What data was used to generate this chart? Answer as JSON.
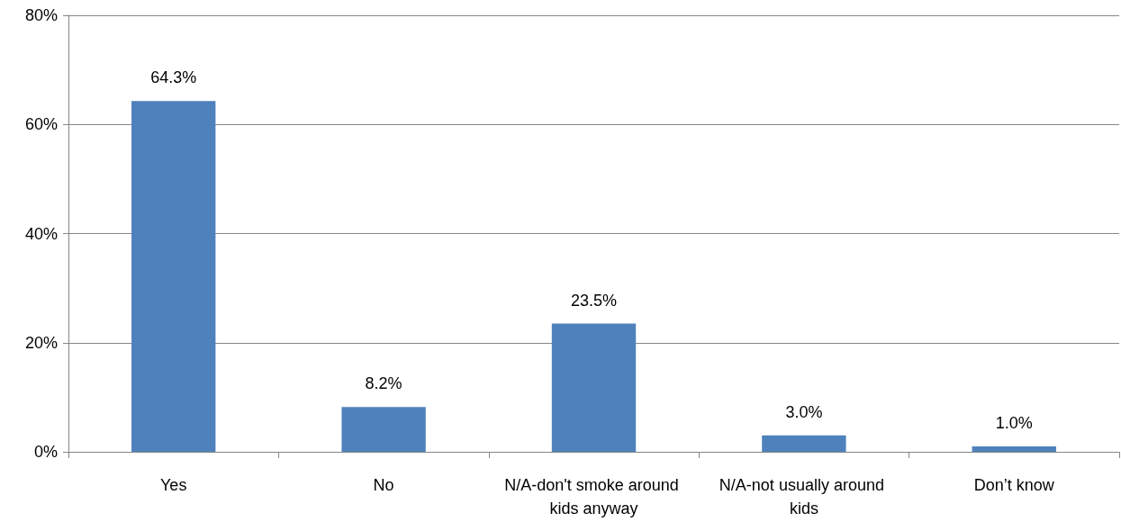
{
  "chart_data": {
    "type": "bar",
    "categories": [
      "Yes",
      "No",
      "N/A-don't smoke around kids anyway",
      "N/A-not usually around kids",
      "Don’t know"
    ],
    "values": [
      64.3,
      8.2,
      23.5,
      3.0,
      1.0
    ],
    "value_labels": [
      "64.3%",
      "8.2%",
      "23.5%",
      "3.0%",
      "1.0%"
    ],
    "color": "#4f81bd",
    "ylim": [
      0,
      80
    ],
    "yticks": [
      {
        "value": 0,
        "label": "0%"
      },
      {
        "value": 20,
        "label": "20%"
      },
      {
        "value": 40,
        "label": "40%"
      },
      {
        "value": 60,
        "label": "60%"
      },
      {
        "value": 80,
        "label": "80%"
      }
    ],
    "grid": "y"
  }
}
